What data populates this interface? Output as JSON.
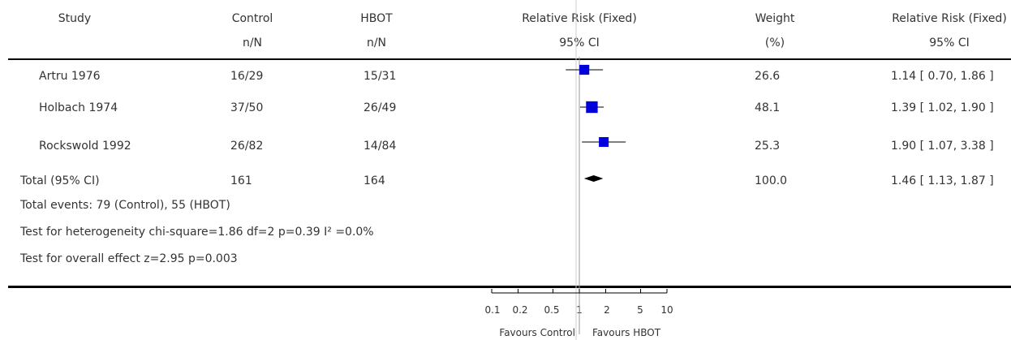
{
  "headers": {
    "study": "Study",
    "control": [
      "Control",
      "n/N"
    ],
    "treatment": [
      "HBOT",
      "n/N"
    ],
    "plot": [
      "Relative Risk (Fixed)",
      "95% CI"
    ],
    "weight": [
      "Weight",
      "(%)"
    ],
    "effect": [
      "Relative Risk (Fixed)",
      "95% CI"
    ]
  },
  "rows": [
    {
      "study": "Artru 1976",
      "control": "16/29",
      "treatment": "15/31",
      "weight": "26.6",
      "ci_text": "1.14 [ 0.70, 1.86 ]"
    },
    {
      "study": "Holbach 1974",
      "control": "37/50",
      "treatment": "26/49",
      "weight": "48.1",
      "ci_text": "1.39 [ 1.02, 1.90 ]"
    },
    {
      "study": "Rockswold 1992",
      "control": "26/82",
      "treatment": "14/84",
      "weight": "25.3",
      "ci_text": "1.90 [ 1.07, 3.38 ]"
    }
  ],
  "total": {
    "study": "Total (95% CI)",
    "control": "161",
    "treatment": "164",
    "weight": "100.0",
    "ci_text": "1.46 [ 1.13, 1.87 ]"
  },
  "notes": [
    "Total events: 79 (Control), 55 (HBOT)",
    "Test for heterogeneity chi-square=1.86 df=2 p=0.39 I² =0.0%",
    "Test for overall effect z=2.95   p=0.003"
  ],
  "axis_tick_labels": [
    "0.1",
    "0.2",
    "0.5",
    "1",
    "2",
    "5",
    "10"
  ],
  "favours_left": "Favours Control",
  "favours_right": "Favours HBOT",
  "colors": {
    "marker": "#0000dd",
    "text": "#333333",
    "rule": "#000000",
    "ref_line": "#999999"
  },
  "chart_data": {
    "type": "forest",
    "scale": "log",
    "xlim": [
      0.1,
      10
    ],
    "ticks": [
      0.1,
      0.2,
      0.5,
      1,
      2,
      5,
      10
    ],
    "studies": [
      {
        "name": "Artru 1976",
        "rr": 1.14,
        "lo": 0.7,
        "hi": 1.86,
        "weight": 26.6
      },
      {
        "name": "Holbach 1974",
        "rr": 1.39,
        "lo": 1.02,
        "hi": 1.9,
        "weight": 48.1
      },
      {
        "name": "Rockswold 1992",
        "rr": 1.9,
        "lo": 1.07,
        "hi": 3.38,
        "weight": 25.3
      }
    ],
    "pooled": {
      "rr": 1.46,
      "lo": 1.13,
      "hi": 1.87
    }
  }
}
